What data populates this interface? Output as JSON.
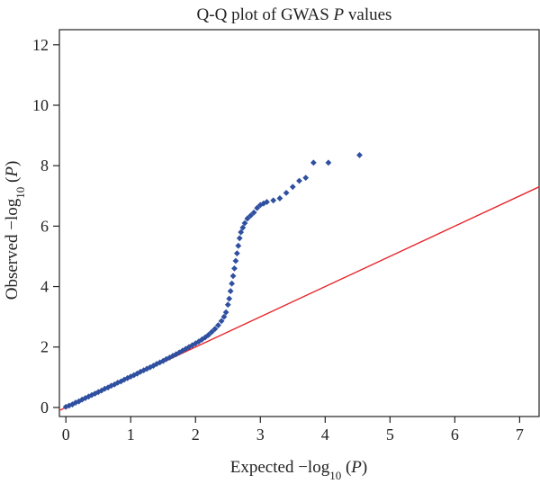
{
  "chart_data": {
    "type": "scatter",
    "title": {
      "pre": "Q-Q plot of GWAS ",
      "italic": "P",
      "post": " values"
    },
    "xlabel": {
      "pre": "Expected −log",
      "sub": "10",
      "post": " (",
      "italic": "P",
      "close": ")"
    },
    "ylabel": {
      "pre": "Observed −log",
      "sub": "10",
      "post": " (",
      "italic": "P",
      "close": ")"
    },
    "xlim": [
      -0.1,
      7.3
    ],
    "ylim": [
      -0.3,
      12.5
    ],
    "x_ticks": [
      0,
      1,
      2,
      3,
      4,
      5,
      6,
      7
    ],
    "x_tick_labels": [
      "0",
      "1",
      "2",
      "3",
      "4",
      "5",
      "6",
      "7"
    ],
    "y_ticks": [
      0,
      2,
      4,
      6,
      8,
      10,
      12
    ],
    "y_tick_labels": [
      "0",
      "2",
      "4",
      "6",
      "8",
      "10",
      "12"
    ],
    "grid": false,
    "point_color": "#2f4fa0",
    "line_color": "#e8242a",
    "reference_line": {
      "x": [
        -0.3,
        7.6
      ],
      "y": [
        -0.3,
        7.6
      ]
    },
    "series": [
      {
        "values": [
          [
            0.0,
            0.02
          ],
          [
            0.05,
            0.06
          ],
          [
            0.1,
            0.1
          ],
          [
            0.15,
            0.16
          ],
          [
            0.2,
            0.2
          ],
          [
            0.25,
            0.26
          ],
          [
            0.3,
            0.31
          ],
          [
            0.35,
            0.36
          ],
          [
            0.4,
            0.41
          ],
          [
            0.45,
            0.46
          ],
          [
            0.5,
            0.51
          ],
          [
            0.55,
            0.56
          ],
          [
            0.6,
            0.62
          ],
          [
            0.65,
            0.66
          ],
          [
            0.7,
            0.72
          ],
          [
            0.75,
            0.76
          ],
          [
            0.8,
            0.82
          ],
          [
            0.85,
            0.86
          ],
          [
            0.9,
            0.92
          ],
          [
            0.95,
            0.97
          ],
          [
            1.0,
            1.02
          ],
          [
            1.05,
            1.07
          ],
          [
            1.1,
            1.12
          ],
          [
            1.15,
            1.18
          ],
          [
            1.2,
            1.23
          ],
          [
            1.25,
            1.28
          ],
          [
            1.3,
            1.33
          ],
          [
            1.35,
            1.38
          ],
          [
            1.4,
            1.44
          ],
          [
            1.45,
            1.49
          ],
          [
            1.5,
            1.54
          ],
          [
            1.55,
            1.6
          ],
          [
            1.6,
            1.65
          ],
          [
            1.65,
            1.71
          ],
          [
            1.7,
            1.76
          ],
          [
            1.75,
            1.82
          ],
          [
            1.8,
            1.88
          ],
          [
            1.85,
            1.94
          ],
          [
            1.9,
            2.0
          ],
          [
            1.95,
            2.06
          ],
          [
            2.0,
            2.12
          ],
          [
            2.05,
            2.18
          ],
          [
            2.1,
            2.25
          ],
          [
            2.15,
            2.32
          ],
          [
            2.2,
            2.4
          ],
          [
            2.25,
            2.5
          ],
          [
            2.3,
            2.6
          ],
          [
            2.35,
            2.72
          ],
          [
            2.4,
            2.86
          ],
          [
            2.44,
            3.0
          ],
          [
            2.47,
            3.15
          ],
          [
            2.5,
            3.4
          ],
          [
            2.52,
            3.6
          ],
          [
            2.54,
            3.85
          ],
          [
            2.56,
            4.1
          ],
          [
            2.58,
            4.35
          ],
          [
            2.6,
            4.6
          ],
          [
            2.62,
            4.85
          ],
          [
            2.64,
            5.1
          ],
          [
            2.66,
            5.35
          ],
          [
            2.68,
            5.6
          ],
          [
            2.7,
            5.8
          ],
          [
            2.73,
            5.95
          ],
          [
            2.76,
            6.1
          ],
          [
            2.8,
            6.25
          ],
          [
            2.85,
            6.35
          ],
          [
            2.9,
            6.45
          ],
          [
            2.95,
            6.6
          ],
          [
            3.0,
            6.7
          ],
          [
            3.05,
            6.75
          ],
          [
            3.1,
            6.8
          ],
          [
            3.2,
            6.85
          ],
          [
            3.3,
            6.92
          ],
          [
            3.4,
            7.1
          ],
          [
            3.5,
            7.3
          ],
          [
            3.6,
            7.5
          ],
          [
            3.7,
            7.6
          ],
          [
            3.82,
            8.1
          ],
          [
            4.05,
            8.1
          ],
          [
            4.53,
            8.35
          ]
        ]
      }
    ]
  }
}
